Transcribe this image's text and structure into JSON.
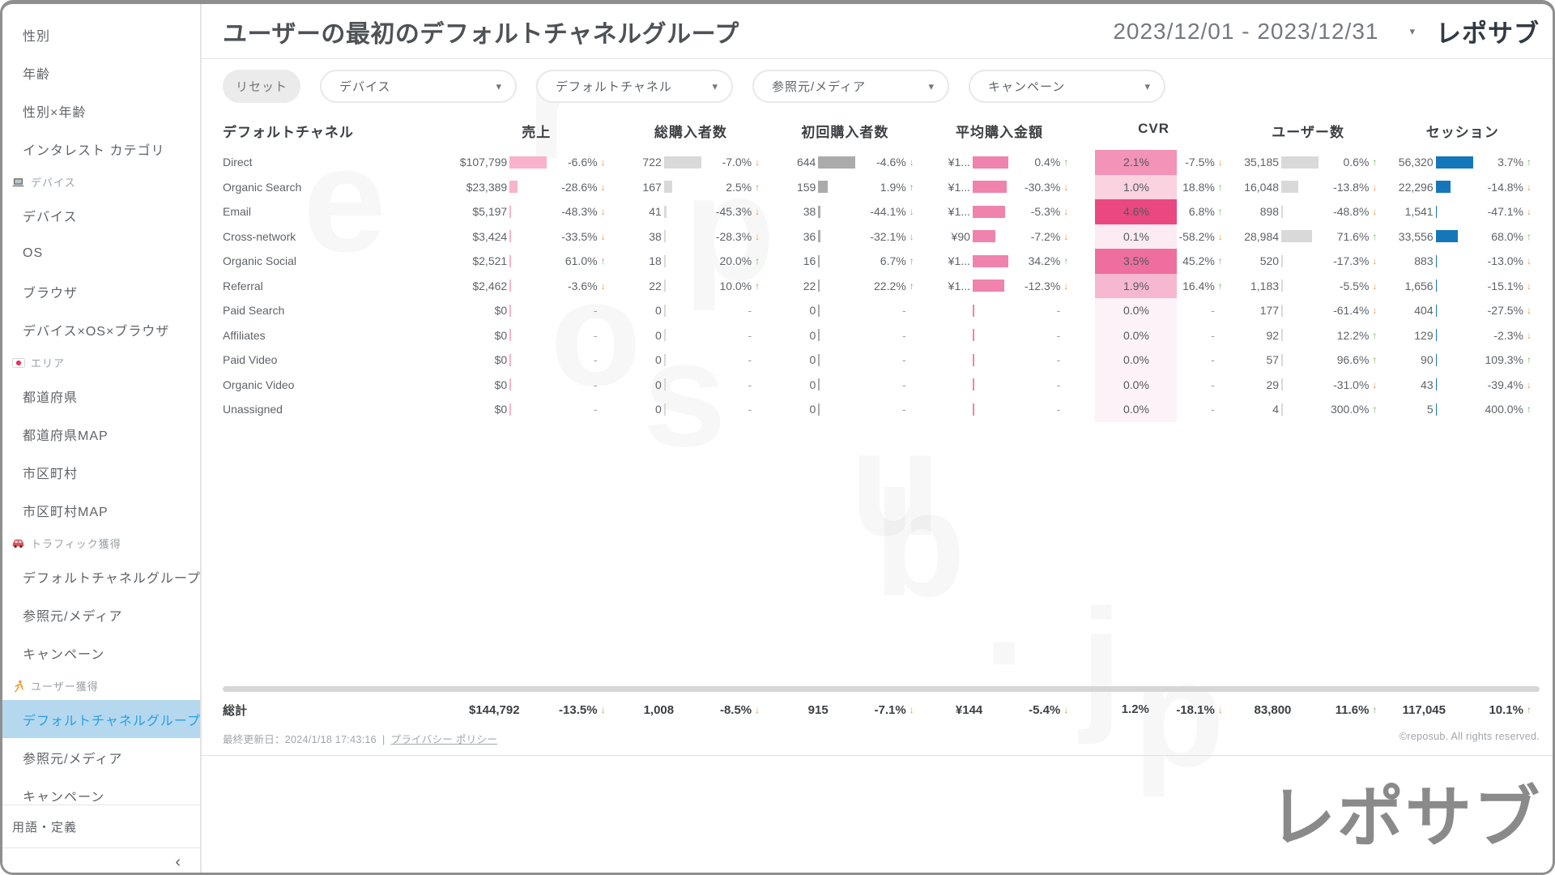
{
  "app": {
    "brand": "レポサブ",
    "copyright": "©reposub. All rights reserved.",
    "watermark_letters": [
      "r",
      "e",
      "p",
      "o",
      "s",
      "u",
      "b",
      ".",
      "j",
      "p"
    ]
  },
  "header": {
    "title": "ユーザーの最初のデフォルトチャネルグループ",
    "date_range": "2023/12/01 - 2023/12/31"
  },
  "filters": {
    "reset_label": "リセット",
    "dropdowns": [
      "デバイス",
      "デフォルトチャネル",
      "参照元/メディア",
      "キャンペーン"
    ]
  },
  "sidebar": {
    "items": [
      {
        "type": "item",
        "label": "性別"
      },
      {
        "type": "item",
        "label": "年齢"
      },
      {
        "type": "item",
        "label": "性別×年齢"
      },
      {
        "type": "item",
        "label": "インタレスト カテゴリ"
      },
      {
        "type": "section",
        "label": "デバイス",
        "icon": "laptop-icon"
      },
      {
        "type": "item",
        "label": "デバイス"
      },
      {
        "type": "item",
        "label": "OS"
      },
      {
        "type": "item",
        "label": "ブラウザ"
      },
      {
        "type": "item",
        "label": "デバイス×OS×ブラウザ"
      },
      {
        "type": "section",
        "label": "エリア",
        "icon": "japan-flag-icon"
      },
      {
        "type": "item",
        "label": "都道府県"
      },
      {
        "type": "item",
        "label": "都道府県MAP"
      },
      {
        "type": "item",
        "label": "市区町村"
      },
      {
        "type": "item",
        "label": "市区町村MAP"
      },
      {
        "type": "section",
        "label": "トラフィック獲得",
        "icon": "car-icon"
      },
      {
        "type": "item",
        "label": "デフォルトチャネルグループ"
      },
      {
        "type": "item",
        "label": "参照元/メディア"
      },
      {
        "type": "item",
        "label": "キャンペーン"
      },
      {
        "type": "section",
        "label": "ユーザー獲得",
        "icon": "runner-icon"
      },
      {
        "type": "item",
        "label": "デフォルトチャネルグループ",
        "selected": true
      },
      {
        "type": "item",
        "label": "参照元/メディア"
      },
      {
        "type": "item",
        "label": "キャンペーン"
      }
    ],
    "footer_item": "用語・定義",
    "collapse_icon": "‹"
  },
  "table": {
    "columns": [
      "デフォルトチャネル",
      "売上",
      "総購入者数",
      "初回購入者数",
      "平均購入金額",
      "CVR",
      "ユーザー数",
      "セッション"
    ],
    "metric_keys": [
      "revenue",
      "buyers",
      "first_buyers",
      "avg_purchase",
      "cvr",
      "users",
      "sessions"
    ],
    "rows": [
      {
        "channel": "Direct",
        "revenue": {
          "v": "$107,799",
          "bar": 100,
          "d": "-6.6%",
          "dir": "down"
        },
        "buyers": {
          "v": "722",
          "bar": 100,
          "d": "-7.0%",
          "dir": "down"
        },
        "first_buyers": {
          "v": "644",
          "bar": 100,
          "d": "-4.6%",
          "dir": "down"
        },
        "avg_purchase": {
          "v": "¥1...",
          "bar": 95,
          "d": "0.4%",
          "dir": "up"
        },
        "cvr": {
          "v": "2.1%",
          "bg": "#F293B7",
          "d": "-7.5%",
          "dir": "down"
        },
        "users": {
          "v": "35,185",
          "bar": 100,
          "d": "0.6%",
          "dir": "up"
        },
        "sessions": {
          "v": "56,320",
          "bar": 100,
          "d": "3.7%",
          "dir": "up"
        }
      },
      {
        "channel": "Organic Search",
        "revenue": {
          "v": "$23,389",
          "bar": 22,
          "d": "-28.6%",
          "dir": "down"
        },
        "buyers": {
          "v": "167",
          "bar": 23,
          "d": "2.5%",
          "dir": "up"
        },
        "first_buyers": {
          "v": "159",
          "bar": 25,
          "d": "1.9%",
          "dir": "up"
        },
        "avg_purchase": {
          "v": "¥1...",
          "bar": 92,
          "d": "-30.3%",
          "dir": "down"
        },
        "cvr": {
          "v": "1.0%",
          "bg": "#FAD2E0",
          "d": "18.8%",
          "dir": "up"
        },
        "users": {
          "v": "16,048",
          "bar": 46,
          "d": "-13.8%",
          "dir": "down"
        },
        "sessions": {
          "v": "22,296",
          "bar": 40,
          "d": "-14.8%",
          "dir": "down"
        }
      },
      {
        "channel": "Email",
        "revenue": {
          "v": "$5,197",
          "bar": 5,
          "d": "-48.3%",
          "dir": "down"
        },
        "buyers": {
          "v": "41",
          "bar": 6,
          "d": "-45.3%",
          "dir": "down"
        },
        "first_buyers": {
          "v": "38",
          "bar": 6,
          "d": "-44.1%",
          "dir": "down"
        },
        "avg_purchase": {
          "v": "¥1...",
          "bar": 88,
          "d": "-5.3%",
          "dir": "down"
        },
        "cvr": {
          "v": "4.6%",
          "bg": "#EA4881",
          "d": "6.8%",
          "dir": "up"
        },
        "users": {
          "v": "898",
          "bar": 3,
          "d": "-48.8%",
          "dir": "down"
        },
        "sessions": {
          "v": "1,541",
          "bar": 3,
          "d": "-47.1%",
          "dir": "down"
        }
      },
      {
        "channel": "Cross-network",
        "revenue": {
          "v": "$3,424",
          "bar": 4,
          "d": "-33.5%",
          "dir": "down"
        },
        "buyers": {
          "v": "38",
          "bar": 5,
          "d": "-28.3%",
          "dir": "down"
        },
        "first_buyers": {
          "v": "36",
          "bar": 6,
          "d": "-32.1%",
          "dir": "down"
        },
        "avg_purchase": {
          "v": "¥90",
          "bar": 60,
          "d": "-7.2%",
          "dir": "down"
        },
        "cvr": {
          "v": "0.1%",
          "bg": "#FCEBF2",
          "d": "-58.2%",
          "dir": "down"
        },
        "users": {
          "v": "28,984",
          "bar": 82,
          "d": "71.6%",
          "dir": "up"
        },
        "sessions": {
          "v": "33,556",
          "bar": 60,
          "d": "68.0%",
          "dir": "up"
        }
      },
      {
        "channel": "Organic Social",
        "revenue": {
          "v": "$2,521",
          "bar": 3,
          "d": "61.0%",
          "dir": "up"
        },
        "buyers": {
          "v": "18",
          "bar": 3,
          "d": "20.0%",
          "dir": "up"
        },
        "first_buyers": {
          "v": "16",
          "bar": 3,
          "d": "6.7%",
          "dir": "up"
        },
        "avg_purchase": {
          "v": "¥1...",
          "bar": 95,
          "d": "34.2%",
          "dir": "up"
        },
        "cvr": {
          "v": "3.5%",
          "bg": "#EE6E9F",
          "d": "45.2%",
          "dir": "up"
        },
        "users": {
          "v": "520",
          "bar": 2,
          "d": "-17.3%",
          "dir": "down"
        },
        "sessions": {
          "v": "883",
          "bar": 2,
          "d": "-13.0%",
          "dir": "down"
        }
      },
      {
        "channel": "Referral",
        "revenue": {
          "v": "$2,462",
          "bar": 3,
          "d": "-3.6%",
          "dir": "down"
        },
        "buyers": {
          "v": "22",
          "bar": 3,
          "d": "10.0%",
          "dir": "up"
        },
        "first_buyers": {
          "v": "22",
          "bar": 4,
          "d": "22.2%",
          "dir": "up"
        },
        "avg_purchase": {
          "v": "¥1...",
          "bar": 85,
          "d": "-12.3%",
          "dir": "down"
        },
        "cvr": {
          "v": "1.9%",
          "bg": "#F6B8D1",
          "d": "16.4%",
          "dir": "up"
        },
        "users": {
          "v": "1,183",
          "bar": 4,
          "d": "-5.5%",
          "dir": "down"
        },
        "sessions": {
          "v": "1,656",
          "bar": 3,
          "d": "-15.1%",
          "dir": "down"
        }
      },
      {
        "channel": "Paid Search",
        "revenue": {
          "v": "$0",
          "bar": 0,
          "d": "-",
          "dir": "flat"
        },
        "buyers": {
          "v": "0",
          "bar": 0,
          "d": "-",
          "dir": "flat"
        },
        "first_buyers": {
          "v": "0",
          "bar": 0,
          "d": "-",
          "dir": "flat"
        },
        "avg_purchase": {
          "v": "",
          "bar": 0,
          "d": "-",
          "dir": "flat"
        },
        "cvr": {
          "v": "0.0%",
          "bg": "#FDF2F7",
          "d": "-",
          "dir": "flat"
        },
        "users": {
          "v": "177",
          "bar": 1,
          "d": "-61.4%",
          "dir": "down"
        },
        "sessions": {
          "v": "404",
          "bar": 1,
          "d": "-27.5%",
          "dir": "down"
        }
      },
      {
        "channel": "Affiliates",
        "revenue": {
          "v": "$0",
          "bar": 0,
          "d": "-",
          "dir": "flat"
        },
        "buyers": {
          "v": "0",
          "bar": 0,
          "d": "-",
          "dir": "flat"
        },
        "first_buyers": {
          "v": "0",
          "bar": 0,
          "d": "-",
          "dir": "flat"
        },
        "avg_purchase": {
          "v": "",
          "bar": 0,
          "d": "-",
          "dir": "flat"
        },
        "cvr": {
          "v": "0.0%",
          "bg": "#FDF2F7",
          "d": "-",
          "dir": "flat"
        },
        "users": {
          "v": "92",
          "bar": 1,
          "d": "12.2%",
          "dir": "up"
        },
        "sessions": {
          "v": "129",
          "bar": 1,
          "d": "-2.3%",
          "dir": "down"
        }
      },
      {
        "channel": "Paid Video",
        "revenue": {
          "v": "$0",
          "bar": 0,
          "d": "-",
          "dir": "flat"
        },
        "buyers": {
          "v": "0",
          "bar": 0,
          "d": "-",
          "dir": "flat"
        },
        "first_buyers": {
          "v": "0",
          "bar": 0,
          "d": "-",
          "dir": "flat"
        },
        "avg_purchase": {
          "v": "",
          "bar": 0,
          "d": "-",
          "dir": "flat"
        },
        "cvr": {
          "v": "0.0%",
          "bg": "#FDF2F7",
          "d": "-",
          "dir": "flat"
        },
        "users": {
          "v": "57",
          "bar": 1,
          "d": "96.6%",
          "dir": "up"
        },
        "sessions": {
          "v": "90",
          "bar": 1,
          "d": "109.3%",
          "dir": "up"
        }
      },
      {
        "channel": "Organic Video",
        "revenue": {
          "v": "$0",
          "bar": 0,
          "d": "-",
          "dir": "flat"
        },
        "buyers": {
          "v": "0",
          "bar": 0,
          "d": "-",
          "dir": "flat"
        },
        "first_buyers": {
          "v": "0",
          "bar": 0,
          "d": "-",
          "dir": "flat"
        },
        "avg_purchase": {
          "v": "",
          "bar": 0,
          "d": "-",
          "dir": "flat"
        },
        "cvr": {
          "v": "0.0%",
          "bg": "#FDF2F7",
          "d": "-",
          "dir": "flat"
        },
        "users": {
          "v": "29",
          "bar": 1,
          "d": "-31.0%",
          "dir": "down"
        },
        "sessions": {
          "v": "43",
          "bar": 1,
          "d": "-39.4%",
          "dir": "down"
        }
      },
      {
        "channel": "Unassigned",
        "revenue": {
          "v": "$0",
          "bar": 0,
          "d": "-",
          "dir": "flat"
        },
        "buyers": {
          "v": "0",
          "bar": 0,
          "d": "-",
          "dir": "flat"
        },
        "first_buyers": {
          "v": "0",
          "bar": 0,
          "d": "-",
          "dir": "flat"
        },
        "avg_purchase": {
          "v": "",
          "bar": 0,
          "d": "-",
          "dir": "flat"
        },
        "cvr": {
          "v": "0.0%",
          "bg": "#FDF2F7",
          "d": "-",
          "dir": "flat"
        },
        "users": {
          "v": "4",
          "bar": 1,
          "d": "300.0%",
          "dir": "up"
        },
        "sessions": {
          "v": "5",
          "bar": 1,
          "d": "400.0%",
          "dir": "up"
        }
      }
    ],
    "total": {
      "channel": "総計",
      "revenue": {
        "v": "$144,792",
        "d": "-13.5%",
        "dir": "down"
      },
      "buyers": {
        "v": "1,008",
        "d": "-8.5%",
        "dir": "down"
      },
      "first_buyers": {
        "v": "915",
        "d": "-7.1%",
        "dir": "down"
      },
      "avg_purchase": {
        "v": "¥144",
        "d": "-5.4%",
        "dir": "down"
      },
      "cvr": {
        "v": "1.2%",
        "d": "-18.1%",
        "dir": "down"
      },
      "users": {
        "v": "83,800",
        "d": "11.6%",
        "dir": "up"
      },
      "sessions": {
        "v": "117,045",
        "d": "10.1%",
        "dir": "up"
      }
    }
  },
  "footer": {
    "last_updated": "最終更新日：2024/1/18 17:43:16",
    "privacy_link": "プライバシー ポリシー"
  },
  "colors": {
    "bar_pink_light": "#F9B2CB",
    "bar_pink": "#EF83AD",
    "bar_gray": "#D9D9D9",
    "bar_darkgray": "#ABABAB",
    "bar_blue": "#1577B9",
    "up_green": "#69B558",
    "down_orange": "#F0953C",
    "selected_bg": "#B5D8EF",
    "selected_text": "#2B9FE3",
    "cvr_strong": "#EA4881"
  }
}
